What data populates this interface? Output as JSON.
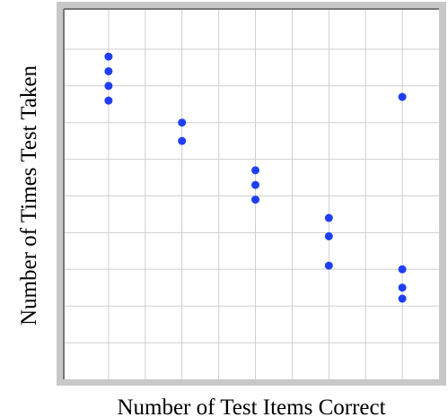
{
  "chart_data": {
    "type": "scatter",
    "x_label": "Number of Test Items Correct",
    "y_label": "Number of Times Test Taken",
    "x": [
      1,
      1,
      1,
      1,
      3,
      3,
      5,
      5,
      5,
      7,
      7,
      7,
      9,
      9,
      9,
      9
    ],
    "values": [
      8.8,
      8.4,
      8.0,
      7.6,
      7.0,
      6.5,
      5.7,
      5.3,
      4.9,
      4.4,
      3.9,
      3.1,
      7.7,
      3.0,
      2.5,
      2.2
    ],
    "color": "#1f3ff5",
    "xlim": [
      0,
      10
    ],
    "ylim": [
      0,
      10
    ],
    "xticks": [
      1,
      2,
      3,
      4,
      5,
      6,
      7,
      8,
      9
    ],
    "yticks": [
      1,
      2,
      3,
      4,
      5,
      6,
      7,
      8,
      9
    ],
    "grid": true
  }
}
